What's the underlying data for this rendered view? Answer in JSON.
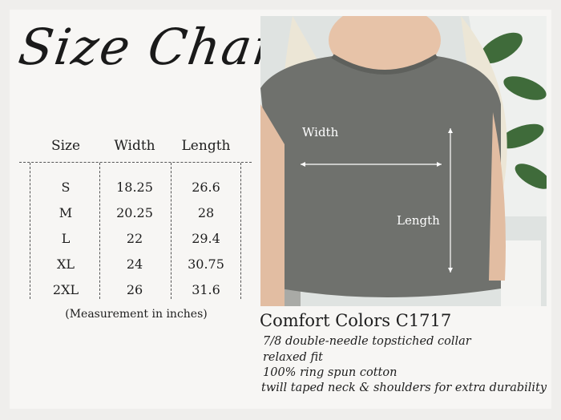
{
  "title": "Size Chart",
  "table": {
    "headers": [
      "Size",
      "Width",
      "Length"
    ],
    "rows": [
      [
        "S",
        "18.25",
        "26.6"
      ],
      [
        "M",
        "20.25",
        "28"
      ],
      [
        "L",
        "22",
        "29.4"
      ],
      [
        "XL",
        "24",
        "30.75"
      ],
      [
        "2XL",
        "26",
        "31.6"
      ]
    ],
    "note": "(Measurement in inches)"
  },
  "photo": {
    "width_label": "Width",
    "length_label": "Length",
    "shirt_color": "#6f716d"
  },
  "product": {
    "name": "Comfort Colors C1717",
    "features": [
      "7/8 double-needle topstiched collar",
      "relaxed fit",
      "100% ring spun cotton",
      "twill taped neck & shoulders for extra durability"
    ]
  }
}
